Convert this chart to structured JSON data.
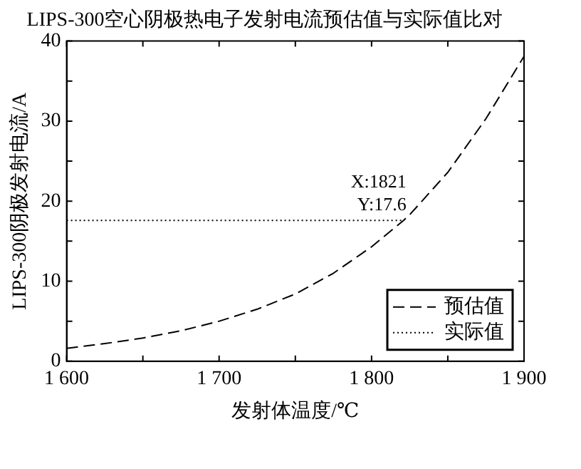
{
  "chart_data": {
    "type": "line",
    "title": "LIPS-300空心阴极热电子发射电流预估值与实际值比对",
    "xlabel": "发射体温度/℃",
    "ylabel": "LIPS-300阴极发射电流/A",
    "xlim": [
      1600,
      1900
    ],
    "xticks": [
      {
        "value": 1600,
        "label": "1 600"
      },
      {
        "value": 1650,
        "label": null
      },
      {
        "value": 1700,
        "label": "1 700"
      },
      {
        "value": 1750,
        "label": null
      },
      {
        "value": 1800,
        "label": "1 800"
      },
      {
        "value": 1850,
        "label": null
      },
      {
        "value": 1900,
        "label": "1 900"
      }
    ],
    "ylim": [
      0,
      40
    ],
    "yticks": [
      0,
      {
        "value": 5,
        "label": null
      },
      10,
      {
        "value": 15,
        "label": null
      },
      20,
      {
        "value": 25,
        "label": null
      },
      30,
      {
        "value": 35,
        "label": null
      },
      40
    ],
    "grid": false,
    "legend": "bottom right",
    "marker": "none",
    "series": [
      {
        "name": "预估值",
        "color": "#000000",
        "line_style": "dashed",
        "x": [
          1600,
          1625,
          1650,
          1675,
          1700,
          1725,
          1750,
          1775,
          1800,
          1821,
          1825,
          1850,
          1875,
          1900
        ],
        "values": [
          1.6,
          2.2,
          2.9,
          3.8,
          5.0,
          6.5,
          8.4,
          11.0,
          14.3,
          17.6,
          18.3,
          23.6,
          30.3,
          38.1
        ]
      },
      {
        "name": "实际值",
        "color": "#000000",
        "line_style": "dotted",
        "x": [
          1600,
          1821
        ],
        "values": [
          17.6,
          17.6
        ]
      }
    ],
    "annotations": [
      {
        "text": "X:1821\nY:17.6",
        "x": 1821,
        "y": 17.6
      }
    ]
  }
}
